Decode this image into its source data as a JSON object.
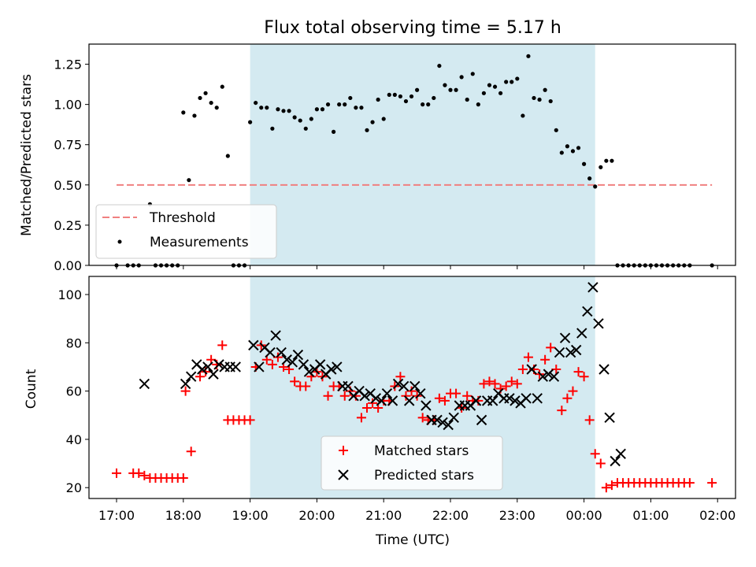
{
  "chart_data": [
    {
      "type": "scatter",
      "title": "Flux total observing time = 5.17 h",
      "ylabel": "Matched/Predicted stars",
      "ylim": [
        0,
        1.375
      ],
      "yticks": [
        0,
        0.25,
        0.5,
        0.75,
        1.0,
        1.25
      ],
      "ytick_labels": [
        "0.00",
        "0.25",
        "0.50",
        "0.75",
        "1.00",
        "1.25"
      ],
      "shaded_interval": [
        "19:00",
        "00:10"
      ],
      "shaded_color": "#d4eaf1",
      "grid": false,
      "legend_placement": "lower-left",
      "series": [
        {
          "name": "Threshold",
          "style": "dashed-line",
          "color": "#f08080",
          "x": [
            "17:00",
            "01:55"
          ],
          "y": [
            0.5,
            0.5
          ]
        },
        {
          "name": "Measurements",
          "style": "dot",
          "color": "#000000",
          "x": [
            "17:00",
            "17:10",
            "17:15",
            "17:20",
            "17:30",
            "17:35",
            "17:40",
            "17:45",
            "17:50",
            "17:55",
            "18:00",
            "18:05",
            "18:10",
            "18:15",
            "18:20",
            "18:25",
            "18:30",
            "18:35",
            "18:40",
            "18:45",
            "18:50",
            "18:55",
            "19:00",
            "19:05",
            "19:10",
            "19:15",
            "19:20",
            "19:25",
            "19:30",
            "19:35",
            "19:40",
            "19:45",
            "19:50",
            "19:55",
            "20:00",
            "20:05",
            "20:10",
            "20:15",
            "20:20",
            "20:25",
            "20:30",
            "20:35",
            "20:40",
            "20:45",
            "20:50",
            "20:55",
            "21:00",
            "21:05",
            "21:10",
            "21:15",
            "21:20",
            "21:25",
            "21:30",
            "21:35",
            "21:40",
            "21:45",
            "21:50",
            "21:55",
            "22:00",
            "22:05",
            "22:10",
            "22:15",
            "22:20",
            "22:25",
            "22:30",
            "22:35",
            "22:40",
            "22:45",
            "22:50",
            "22:55",
            "23:00",
            "23:05",
            "23:10",
            "23:15",
            "23:20",
            "23:25",
            "23:30",
            "23:35",
            "23:40",
            "23:45",
            "23:50",
            "23:55",
            "00:00",
            "00:05",
            "00:10",
            "00:15",
            "00:20",
            "00:25",
            "00:30",
            "00:35",
            "00:40",
            "00:45",
            "00:50",
            "00:55",
            "01:00",
            "01:05",
            "01:10",
            "01:15",
            "01:20",
            "01:25",
            "01:30",
            "01:35",
            "01:55"
          ],
          "y": [
            0,
            0,
            0,
            0,
            0.38,
            0,
            0,
            0,
            0,
            0,
            0.95,
            0.53,
            0.93,
            1.04,
            1.07,
            1.01,
            0.98,
            1.11,
            0.68,
            0,
            0,
            0,
            0.89,
            1.01,
            0.98,
            0.98,
            0.85,
            0.97,
            0.96,
            0.96,
            0.92,
            0.9,
            0.85,
            0.91,
            0.97,
            0.97,
            1.0,
            0.83,
            1.0,
            1.0,
            1.04,
            0.98,
            0.98,
            0.84,
            0.89,
            1.03,
            0.91,
            1.06,
            1.06,
            1.05,
            1.02,
            1.05,
            1.09,
            1.0,
            1.0,
            1.04,
            1.24,
            1.12,
            1.09,
            1.09,
            1.17,
            1.03,
            1.19,
            1.0,
            1.07,
            1.12,
            1.11,
            1.07,
            1.14,
            1.14,
            1.16,
            0.93,
            1.3,
            1.04,
            1.03,
            1.09,
            1.02,
            0.84,
            0.7,
            0.74,
            0.71,
            0.73,
            0.63,
            0.54,
            0.49,
            0.61,
            0.65,
            0.65,
            0,
            0,
            0,
            0,
            0,
            0,
            0,
            0,
            0,
            0,
            0,
            0,
            0,
            0,
            0
          ]
        }
      ]
    },
    {
      "type": "scatter",
      "xlabel": "Time (UTC)",
      "ylabel": "Count",
      "ylim": [
        15.5,
        107.5
      ],
      "yticks": [
        20,
        40,
        60,
        80,
        100
      ],
      "ytick_labels": [
        "20",
        "40",
        "60",
        "80",
        "100"
      ],
      "xticks": [
        "17:00",
        "18:00",
        "19:00",
        "20:00",
        "21:00",
        "22:00",
        "23:00",
        "00:00",
        "01:00",
        "02:00"
      ],
      "shaded_interval": [
        "19:00",
        "00:10"
      ],
      "shaded_color": "#d4eaf1",
      "grid": false,
      "legend_placement": "lower-center",
      "series": [
        {
          "name": "Matched stars",
          "marker": "plus",
          "color": "#ff0000",
          "x": [
            "17:00",
            "17:15",
            "17:20",
            "17:25",
            "17:30",
            "17:35",
            "17:40",
            "17:45",
            "17:50",
            "17:55",
            "18:00",
            "18:02",
            "18:07",
            "18:15",
            "18:20",
            "18:25",
            "18:30",
            "18:35",
            "18:40",
            "18:45",
            "18:50",
            "18:55",
            "19:00",
            "19:05",
            "19:10",
            "19:15",
            "19:20",
            "19:25",
            "19:30",
            "19:35",
            "19:40",
            "19:45",
            "19:50",
            "19:55",
            "20:00",
            "20:05",
            "20:10",
            "20:15",
            "20:20",
            "20:25",
            "20:30",
            "20:35",
            "20:40",
            "20:45",
            "20:50",
            "20:55",
            "21:00",
            "21:05",
            "21:10",
            "21:15",
            "21:20",
            "21:25",
            "21:30",
            "21:35",
            "21:40",
            "21:45",
            "21:50",
            "21:55",
            "22:00",
            "22:05",
            "22:10",
            "22:15",
            "22:20",
            "22:25",
            "22:30",
            "22:35",
            "22:40",
            "22:45",
            "22:50",
            "22:55",
            "23:00",
            "23:05",
            "23:10",
            "23:15",
            "23:20",
            "23:25",
            "23:30",
            "23:35",
            "23:40",
            "23:45",
            "23:50",
            "23:55",
            "00:00",
            "00:05",
            "00:10",
            "00:15",
            "00:20",
            "00:25",
            "00:30",
            "00:35",
            "00:40",
            "00:45",
            "00:50",
            "00:55",
            "01:00",
            "01:05",
            "01:10",
            "01:15",
            "01:20",
            "01:25",
            "01:30",
            "01:35",
            "01:55"
          ],
          "y": [
            26,
            26,
            26,
            25,
            24,
            24,
            24,
            24,
            24,
            24,
            24,
            60,
            35,
            66,
            68,
            73,
            71,
            79,
            48,
            48,
            48,
            48,
            48,
            70,
            79,
            73,
            71,
            74,
            70,
            69,
            64,
            62,
            62,
            66,
            68,
            66,
            58,
            62,
            62,
            58,
            60,
            58,
            49,
            53,
            55,
            53,
            56,
            56,
            62,
            66,
            58,
            60,
            58,
            49,
            48,
            48,
            57,
            56,
            59,
            59,
            53,
            58,
            56,
            56,
            63,
            64,
            63,
            61,
            62,
            64,
            63,
            69,
            74,
            69,
            67,
            73,
            78,
            69,
            52,
            57,
            60,
            68,
            66,
            48,
            34,
            30,
            20,
            21,
            22,
            22,
            22,
            22,
            22,
            22,
            22,
            22,
            22,
            22,
            22,
            22,
            22,
            22,
            22
          ]
        },
        {
          "name": "Predicted stars",
          "marker": "x",
          "color": "#000000",
          "x": [
            "17:25",
            "18:02",
            "18:07",
            "18:12",
            "18:17",
            "18:22",
            "18:27",
            "18:32",
            "18:37",
            "18:42",
            "18:47",
            "19:03",
            "19:08",
            "19:13",
            "19:18",
            "19:23",
            "19:28",
            "19:33",
            "19:38",
            "19:43",
            "19:48",
            "19:53",
            "19:58",
            "20:03",
            "20:08",
            "20:13",
            "20:18",
            "20:23",
            "20:28",
            "20:33",
            "20:38",
            "20:43",
            "20:48",
            "20:53",
            "20:58",
            "21:03",
            "21:08",
            "21:13",
            "21:18",
            "21:23",
            "21:28",
            "21:33",
            "21:38",
            "21:43",
            "21:48",
            "21:53",
            "21:58",
            "22:03",
            "22:08",
            "22:13",
            "22:18",
            "22:23",
            "22:28",
            "22:33",
            "22:38",
            "22:43",
            "22:48",
            "22:53",
            "22:58",
            "23:03",
            "23:08",
            "23:13",
            "23:18",
            "23:23",
            "23:28",
            "23:33",
            "23:38",
            "23:43",
            "23:48",
            "23:53",
            "23:58",
            "00:03",
            "00:08",
            "00:13",
            "00:18",
            "00:23",
            "00:28",
            "00:33"
          ],
          "y": [
            63,
            63,
            66,
            71,
            69,
            70,
            67,
            71,
            70,
            70,
            70,
            79,
            70,
            78,
            76,
            83,
            76,
            73,
            72,
            75,
            71,
            68,
            69,
            71,
            67,
            69,
            70,
            62,
            62,
            58,
            60,
            58,
            59,
            57,
            56,
            59,
            56,
            63,
            62,
            56,
            62,
            59,
            54,
            48,
            48,
            47,
            46,
            49,
            54,
            54,
            54,
            56,
            48,
            56,
            56,
            59,
            57,
            57,
            56,
            55,
            57,
            69,
            57,
            66,
            67,
            66,
            76,
            82,
            76,
            77,
            84,
            93,
            103,
            88,
            69,
            49,
            31,
            34
          ]
        }
      ]
    }
  ]
}
